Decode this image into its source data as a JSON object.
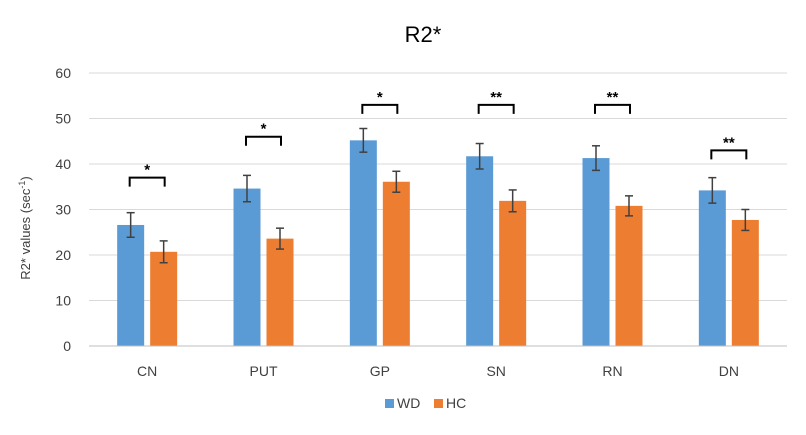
{
  "chart_data": {
    "type": "bar",
    "title": "R2*",
    "ylabel_main": "R2* values (sec",
    "ylabel_sup": "-1",
    "ylabel_close": ")",
    "xlabel": "",
    "ylim": [
      0,
      60
    ],
    "yticks": [
      0,
      10,
      20,
      30,
      40,
      50,
      60
    ],
    "grid": true,
    "legend_position": "bottom",
    "categories": [
      "CN",
      "PUT",
      "GP",
      "SN",
      "RN",
      "DN"
    ],
    "series": [
      {
        "name": "WD",
        "color": "#5B9BD5",
        "values": [
          26.6,
          34.6,
          45.2,
          41.7,
          41.3,
          34.2
        ],
        "errors": [
          2.7,
          2.9,
          2.6,
          2.8,
          2.7,
          2.8
        ]
      },
      {
        "name": "HC",
        "color": "#ED7D31",
        "values": [
          20.7,
          23.6,
          36.1,
          31.9,
          30.8,
          27.7
        ],
        "errors": [
          2.4,
          2.3,
          2.3,
          2.4,
          2.2,
          2.3
        ]
      }
    ],
    "significance": [
      {
        "category": "CN",
        "label": "*",
        "level": 37
      },
      {
        "category": "PUT",
        "label": "*",
        "level": 46
      },
      {
        "category": "GP",
        "label": "*",
        "level": 53
      },
      {
        "category": "SN",
        "label": "**",
        "level": 53
      },
      {
        "category": "RN",
        "label": "**",
        "level": 53
      },
      {
        "category": "DN",
        "label": "**",
        "level": 43
      }
    ]
  },
  "colors": {
    "gridline": "#d9d9d9",
    "axis": "#bfbfbf",
    "text": "#404040",
    "title": "#000000",
    "error_bar": "#404040",
    "bracket": "#000000"
  }
}
